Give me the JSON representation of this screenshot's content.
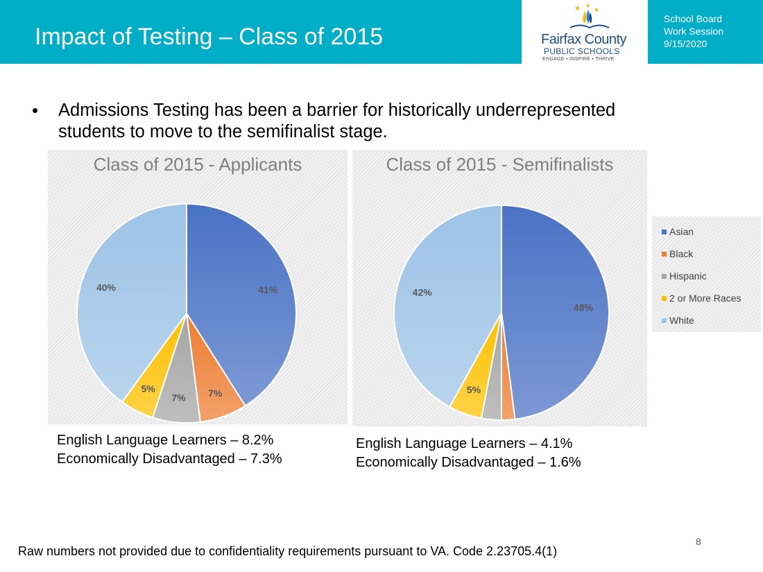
{
  "header": {
    "title": "Impact of Testing – Class of 2015",
    "logo": {
      "name": "Fairfax County",
      "subname": "PUBLIC SCHOOLS",
      "tagline": "ENGAGE • INSPIRE • THRIVE"
    },
    "meta": {
      "line1": "School Board",
      "line2": "Work Session",
      "line3": "9/15/2020"
    }
  },
  "bullet": {
    "symbol": "•",
    "text": "Admissions Testing has been a barrier for historically underrepresented students to move to the semifinalist stage."
  },
  "colors": {
    "header_bg": "#00aec7",
    "Asian": "#4a72c4",
    "Black": "#ed7d31",
    "Hispanic": "#a5a5a5",
    "2 or More Races": "#ffc000",
    "White": "#9dc3e6"
  },
  "chart_data": [
    {
      "type": "pie",
      "title": "Class of 2015 - Applicants",
      "categories": [
        "Asian",
        "Black",
        "Hispanic",
        "2 or More Races",
        "White"
      ],
      "values": [
        41,
        7,
        7,
        5,
        40
      ],
      "labels": [
        "41%",
        "7%",
        "7%",
        "5%",
        "40%"
      ],
      "start_angle_deg": 0,
      "direction": "clockwise"
    },
    {
      "type": "pie",
      "title": "Class of 2015 - Semifinalists",
      "categories": [
        "Asian",
        "Black",
        "Hispanic",
        "2 or More Races",
        "White"
      ],
      "values": [
        48,
        2,
        3,
        5,
        42
      ],
      "labels": [
        "48%",
        "2%",
        "3%",
        "5%",
        "42%"
      ],
      "start_angle_deg": 0,
      "direction": "clockwise",
      "legend": {
        "placement": "right",
        "entries": [
          "Asian",
          "Black",
          "Hispanic",
          "2 or More Races",
          "White"
        ]
      }
    }
  ],
  "stats": {
    "applicants": {
      "ell": "English Language Learners – 8.2%",
      "econ": "Economically Disadvantaged  – 7.3%"
    },
    "semifinalists": {
      "ell": "English Language Learners – 4.1%",
      "econ": "Economically Disadvantaged – 1.6%"
    }
  },
  "footnote": "Raw numbers not provided due to confidentiality requirements pursuant to VA. Code 2.23705.4(1)",
  "page_number": "8"
}
